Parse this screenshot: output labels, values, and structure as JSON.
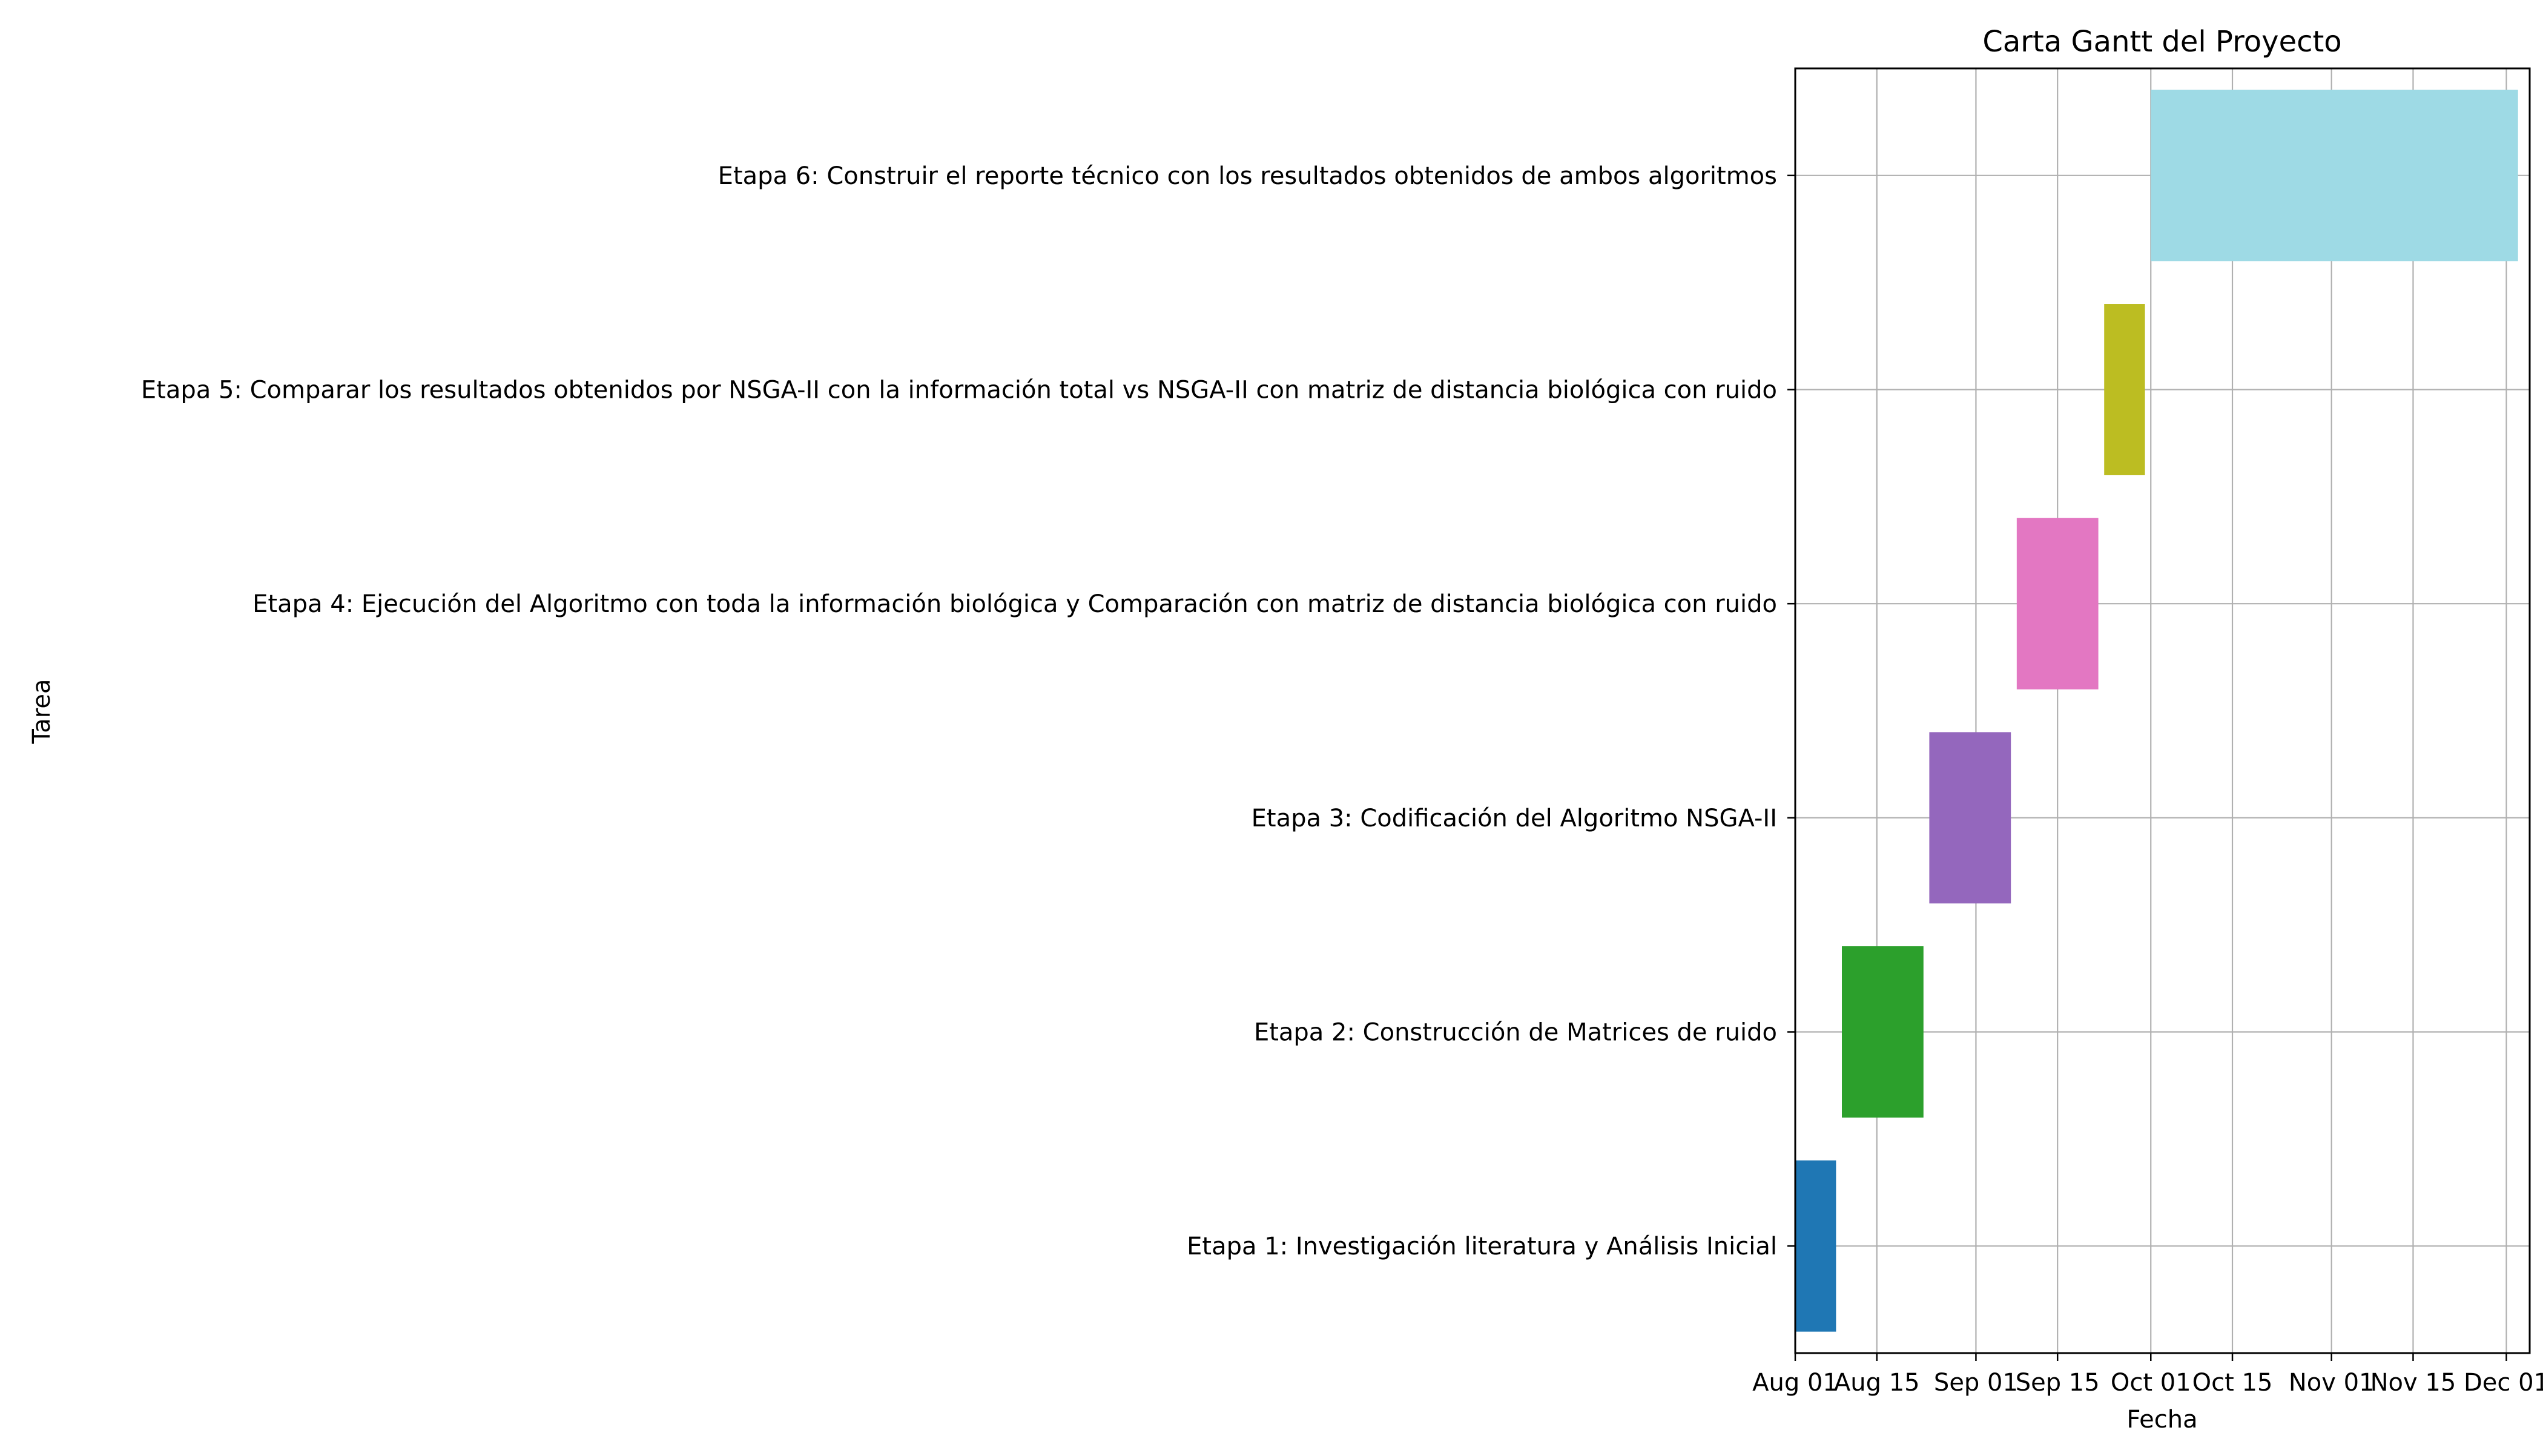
{
  "chart_data": {
    "type": "bar",
    "orientation": "horizontal",
    "title": "Carta Gantt del Proyecto",
    "xlabel": "Fecha",
    "ylabel": "Tarea",
    "grid": true,
    "xlim": [
      "2023-08-01",
      "2023-12-05"
    ],
    "x_ticks": [
      {
        "date": "2023-08-01",
        "label": "Aug 01"
      },
      {
        "date": "2023-08-15",
        "label": "Aug 15"
      },
      {
        "date": "2023-09-01",
        "label": "Sep 01"
      },
      {
        "date": "2023-09-15",
        "label": "Sep 15"
      },
      {
        "date": "2023-10-01",
        "label": "Oct 01"
      },
      {
        "date": "2023-10-15",
        "label": "Oct 15"
      },
      {
        "date": "2023-11-01",
        "label": "Nov 01"
      },
      {
        "date": "2023-11-15",
        "label": "Nov 15"
      },
      {
        "date": "2023-12-01",
        "label": "Dec 01"
      }
    ],
    "tasks": [
      {
        "label": "Etapa 1: Investigación literatura y Análisis Inicial",
        "start": "2023-08-01",
        "end": "2023-08-08",
        "color": "#1f77b4"
      },
      {
        "label": "Etapa 2: Construcción de Matrices de ruido",
        "start": "2023-08-09",
        "end": "2023-08-23",
        "color": "#2ca02c"
      },
      {
        "label": "Etapa 3: Codificación del Algoritmo NSGA-II",
        "start": "2023-08-24",
        "end": "2023-09-07",
        "color": "#9467bd"
      },
      {
        "label": "Etapa 4: Ejecución del Algoritmo con toda la información biológica y Comparación con matriz de distancia biológica con ruido",
        "start": "2023-09-08",
        "end": "2023-09-22",
        "color": "#e377c2"
      },
      {
        "label": "Etapa 5: Comparar los resultados obtenidos por NSGA-II con la información total vs NSGA-II con matriz de distancia biológica con ruido",
        "start": "2023-09-23",
        "end": "2023-09-30",
        "color": "#bcbd22"
      },
      {
        "label": "Etapa 6: Construir el reporte técnico con los resultados obtenidos de ambos algoritmos",
        "start": "2023-10-01",
        "end": "2023-12-03",
        "color": "#9edae5"
      }
    ]
  }
}
